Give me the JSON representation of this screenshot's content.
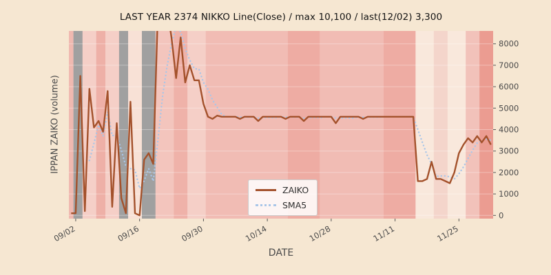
{
  "chart_data": {
    "type": "line",
    "title": "LAST YEAR 2374 NIKKO Line(Close) / max 10,100 / last(12/02) 3,300",
    "xlabel": "DATE",
    "ylabel": "IPPAN ZAIKO (volume)",
    "annotations": {
      "max": 10100,
      "last_date": "12/02",
      "last_value": 3300
    },
    "legend": [
      {
        "name": "ZAIKO",
        "style": "solid",
        "color": "#a3512b"
      },
      {
        "name": "SMA5",
        "style": "dotted",
        "color": "#a9c6e8"
      }
    ],
    "legend_position": "center-bottom",
    "grid": true,
    "ylim": [
      -150,
      8600
    ],
    "yticks": [
      0,
      1000,
      2000,
      3000,
      4000,
      5000,
      6000,
      7000,
      8000
    ],
    "xticks": [
      "09/02",
      "09/16",
      "09/30",
      "10/14",
      "10/28",
      "11/11",
      "11/25"
    ],
    "dates": [
      "09/01",
      "09/02",
      "09/03",
      "09/04",
      "09/05",
      "09/06",
      "09/07",
      "09/08",
      "09/09",
      "09/10",
      "09/11",
      "09/12",
      "09/13",
      "09/14",
      "09/15",
      "09/16",
      "09/17",
      "09/18",
      "09/19",
      "09/20",
      "09/21",
      "09/22",
      "09/23",
      "09/24",
      "09/25",
      "09/26",
      "09/27",
      "09/28",
      "09/29",
      "09/30",
      "10/01",
      "10/02",
      "10/03",
      "10/04",
      "10/05",
      "10/06",
      "10/07",
      "10/08",
      "10/09",
      "10/10",
      "10/11",
      "10/12",
      "10/13",
      "10/14",
      "10/15",
      "10/16",
      "10/17",
      "10/18",
      "10/19",
      "10/20",
      "10/21",
      "10/22",
      "10/23",
      "10/24",
      "10/25",
      "10/26",
      "10/27",
      "10/28",
      "10/29",
      "10/30",
      "10/31",
      "11/01",
      "11/02",
      "11/03",
      "11/04",
      "11/05",
      "11/06",
      "11/07",
      "11/08",
      "11/09",
      "11/10",
      "11/11",
      "11/12",
      "11/13",
      "11/14",
      "11/15",
      "11/16",
      "11/17",
      "11/18",
      "11/19",
      "11/20",
      "11/21",
      "11/22",
      "11/23",
      "11/24",
      "11/25",
      "11/26",
      "11/27",
      "11/28",
      "11/29",
      "11/30",
      "12/01",
      "12/02"
    ],
    "series": {
      "zaiko": [
        100,
        100,
        6500,
        200,
        5900,
        4100,
        4400,
        3900,
        5800,
        400,
        4300,
        800,
        100,
        5300,
        100,
        0,
        2600,
        2900,
        2400,
        9500,
        10100,
        9700,
        8300,
        6400,
        8300,
        6200,
        7000,
        6300,
        6300,
        5200,
        4600,
        4500,
        4650,
        4600,
        4600,
        4600,
        4600,
        4500,
        4600,
        4600,
        4600,
        4400,
        4600,
        4600,
        4600,
        4600,
        4600,
        4500,
        4600,
        4600,
        4600,
        4400,
        4600,
        4600,
        4600,
        4600,
        4600,
        4600,
        4300,
        4600,
        4600,
        4600,
        4600,
        4600,
        4500,
        4600,
        4600,
        4600,
        4600,
        4600,
        4600,
        4600,
        4600,
        4600,
        4600,
        4600,
        1600,
        1600,
        1700,
        2500,
        1700,
        1700,
        1600,
        1500,
        2000,
        2900,
        3300,
        3600,
        3400,
        3700,
        3400,
        3700,
        3300
      ],
      "sma5": "computed: 5-day moving average of zaiko"
    },
    "colors": {
      "figure_bg": "#f6e7d2",
      "plot_bg": "#f3cbc4",
      "zaiko": "#a3512b",
      "sma5": "#a9c6e8",
      "tick_text": "#4a4a4a"
    },
    "bands": [
      {
        "start": "09/01",
        "end": "09/01",
        "color": "#f0b9b0"
      },
      {
        "start": "09/02",
        "end": "09/03",
        "color": "#a0a0a0"
      },
      {
        "start": "09/04",
        "end": "09/06",
        "color": "#f5cfc7"
      },
      {
        "start": "09/07",
        "end": "09/08",
        "color": "#eeb0a7"
      },
      {
        "start": "09/09",
        "end": "09/11",
        "color": "#f5cfc7"
      },
      {
        "start": "09/12",
        "end": "09/13",
        "color": "#a0a0a0"
      },
      {
        "start": "09/14",
        "end": "09/16",
        "color": "#f8e1d6"
      },
      {
        "start": "09/17",
        "end": "09/19",
        "color": "#a0a0a0"
      },
      {
        "start": "09/20",
        "end": "09/23",
        "color": "#f3c5bd"
      },
      {
        "start": "09/24",
        "end": "09/26",
        "color": "#efb2a9"
      },
      {
        "start": "09/27",
        "end": "09/30",
        "color": "#f5cfc7"
      },
      {
        "start": "10/01",
        "end": "10/18",
        "color": "#f1bcb4"
      },
      {
        "start": "10/19",
        "end": "10/25",
        "color": "#eeaca3"
      },
      {
        "start": "10/26",
        "end": "11/08",
        "color": "#f1bcb4"
      },
      {
        "start": "11/09",
        "end": "11/15",
        "color": "#eeaca3"
      },
      {
        "start": "11/16",
        "end": "11/19",
        "color": "#f9e8dc"
      },
      {
        "start": "11/20",
        "end": "11/22",
        "color": "#f4d5cb"
      },
      {
        "start": "11/23",
        "end": "11/26",
        "color": "#f9e8dc"
      },
      {
        "start": "11/27",
        "end": "11/29",
        "color": "#f2c2ba"
      },
      {
        "start": "11/30",
        "end": "12/02",
        "color": "#eb9c91"
      }
    ]
  }
}
